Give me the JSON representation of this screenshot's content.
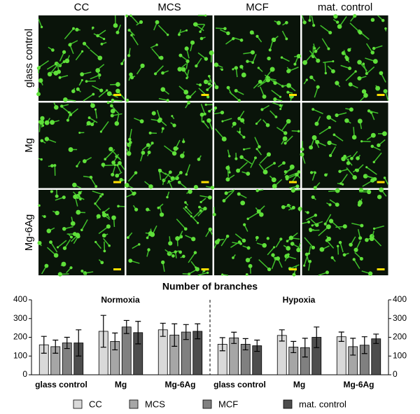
{
  "image_panel": {
    "columns": [
      "CC",
      "MCS",
      "MCF",
      "mat. control"
    ],
    "rows": [
      "glass control",
      "Mg",
      "Mg-6Ag"
    ]
  },
  "chart_data": {
    "type": "bar",
    "title": "Number of branches",
    "annotations": [
      "Normoxia",
      "Hypoxia"
    ],
    "categories": [
      "glass control",
      "Mg",
      "Mg-6Ag",
      "glass control",
      "Mg",
      "Mg-6Ag"
    ],
    "series": [
      {
        "name": "CC",
        "color": "#d9d9d9",
        "values": [
          160,
          232,
          240,
          163,
          210,
          203
        ],
        "errors": [
          45,
          85,
          35,
          35,
          30,
          25
        ]
      },
      {
        "name": "MCS",
        "color": "#a6a6a6",
        "values": [
          150,
          178,
          212,
          197,
          148,
          150
        ],
        "errors": [
          35,
          45,
          60,
          30,
          30,
          45
        ]
      },
      {
        "name": "MCF",
        "color": "#808080",
        "values": [
          170,
          255,
          228,
          163,
          145,
          158
        ],
        "errors": [
          30,
          35,
          40,
          30,
          50,
          45
        ]
      },
      {
        "name": "mat. control",
        "color": "#4d4d4d",
        "values": [
          170,
          225,
          232,
          155,
          200,
          192
        ],
        "errors": [
          70,
          60,
          40,
          30,
          55,
          25
        ]
      }
    ],
    "ylim": [
      0,
      400
    ],
    "yticks": [
      0,
      100,
      200,
      300,
      400
    ],
    "y2lim": [
      0,
      400
    ],
    "y2ticks": [
      0,
      100,
      200,
      300,
      400
    ]
  }
}
